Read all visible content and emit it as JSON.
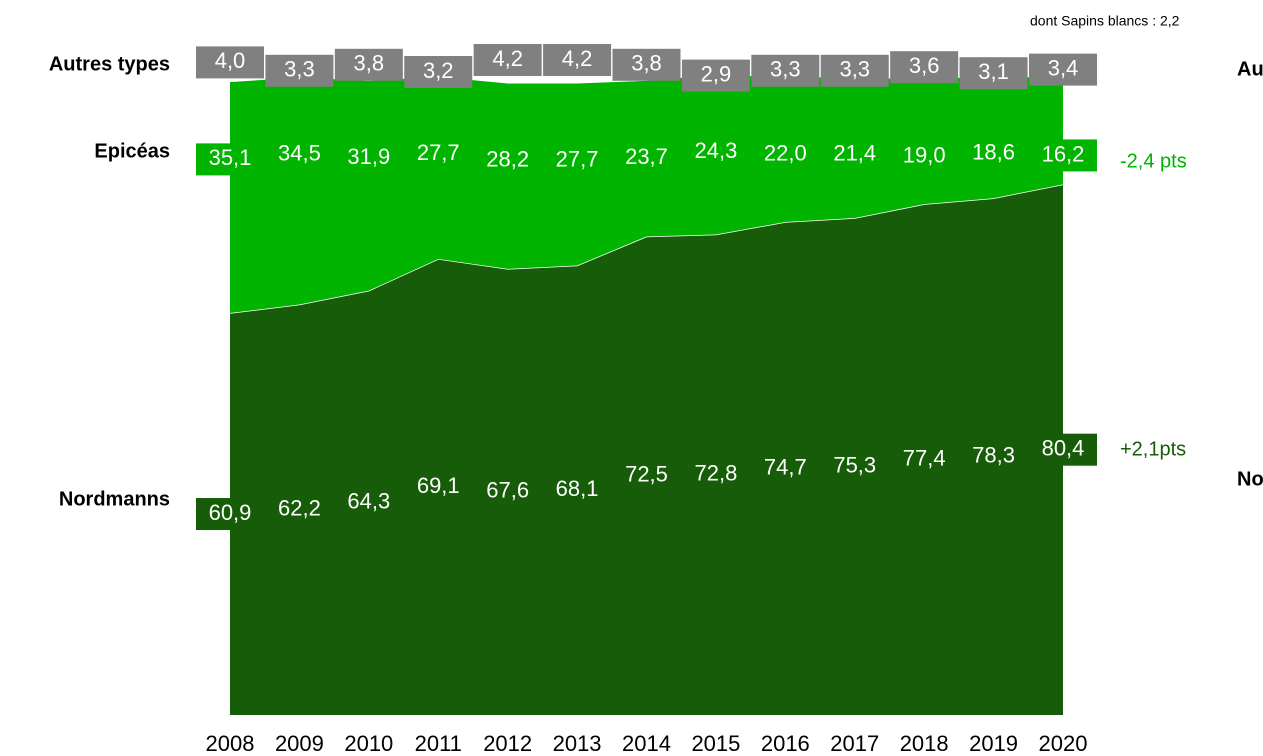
{
  "chart_data": {
    "type": "stacked_area",
    "categories": [
      "2008",
      "2009",
      "2010",
      "2011",
      "2012",
      "2013",
      "2014",
      "2015",
      "2016",
      "2017",
      "2018",
      "2019",
      "2020"
    ],
    "series": [
      {
        "name": "Nordmanns",
        "color": "#175c08",
        "values": [
          60.9,
          62.2,
          64.3,
          69.1,
          67.6,
          68.1,
          72.5,
          72.8,
          74.7,
          75.3,
          77.4,
          78.3,
          80.4
        ],
        "value_labels": [
          "60,9",
          "62,2",
          "64,3",
          "69,1",
          "67,6",
          "68,1",
          "72,5",
          "72,8",
          "74,7",
          "75,3",
          "77,4",
          "78,3",
          "80,4"
        ]
      },
      {
        "name": "Epicéas",
        "color": "#00b400",
        "values": [
          35.1,
          34.5,
          31.9,
          27.7,
          28.2,
          27.7,
          23.7,
          24.3,
          22.0,
          21.4,
          19.0,
          18.6,
          16.2
        ],
        "value_labels": [
          "35,1",
          "34,5",
          "31,9",
          "27,7",
          "28,2",
          "27,7",
          "23,7",
          "24,3",
          "22,0",
          "21,4",
          "19,0",
          "18,6",
          "16,2"
        ]
      },
      {
        "name": "Autres types",
        "color": "#808080",
        "values": [
          4.0,
          3.3,
          3.8,
          3.2,
          4.2,
          4.2,
          3.8,
          2.9,
          3.3,
          3.3,
          3.6,
          3.1,
          3.4
        ],
        "value_labels": [
          "4,0",
          "3,3",
          "3,8",
          "3,2",
          "4,2",
          "4,2",
          "3,8",
          "2,9",
          "3,3",
          "3,3",
          "3,6",
          "3,1",
          "3,4"
        ]
      }
    ],
    "ylim": [
      0,
      100
    ],
    "annotations": [
      "dont Sapins blancs : 2,2",
      "-2,4 pts",
      "+2,1pts"
    ]
  }
}
